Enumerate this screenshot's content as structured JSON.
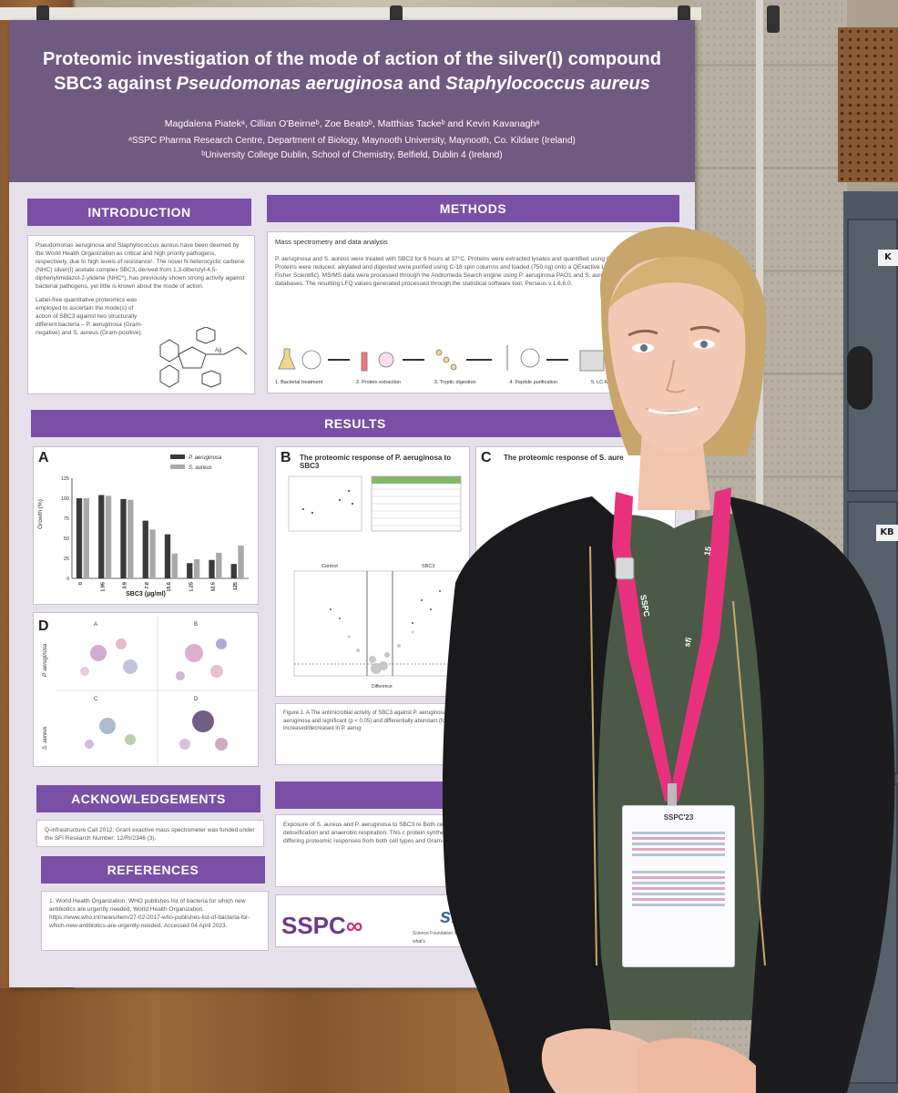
{
  "poster": {
    "title_line1": "Proteomic investigation of the mode of action of the silver(I) compound",
    "title_line2_a": "SBC3 against ",
    "title_line2_b": "Pseudomonas aeruginosa",
    "title_line2_c": " and ",
    "title_line2_d": "Staphylococcus aureus",
    "authors": "Magdalena Piatekᵃ, Cillian O'Beirneᵇ, Zoe Beatoᵇ, Matthias Tackeᵇ and Kevin Kavanaghᵃ",
    "affiliation_a": "ᵃSSPC Pharma Research Centre, Department of Biology, Maynooth University, Maynooth, Co. Kildare (Ireland)",
    "affiliation_b": "ᵇUniversity College Dublin, School of Chemistry, Belfield, Dublin 4 (Ireland)",
    "introduction": {
      "heading": "INTRODUCTION",
      "para1": "Pseudomonas aeruginosa and Staphylococcus aureus have been deemed by the World Health Organization as critical and high priority pathogens, respectively, due to high levels of resistance¹. The novel N-heterocyclic carbene (NHC) silver(I) acetate complex SBC3, derived from 1,3-dibenzyl-4,5-diphenylimidazol-2-ylidene (NHC*), has previously shown strong activity against bacterial pathogens, yet little is known about the mode of action.",
      "para2": "Label-free quantitative proteomics was employed to ascertain the mode(s) of action of SBC3 against two structurally different bacteria – P. aeruginosa (Gram-negative) and S. aureus (Gram-positive)."
    },
    "methods": {
      "heading": "METHODS",
      "subheading": "Mass spectrometry and data analysis",
      "text": "P. aeruginosa and S. aureus were treated with SBC3 for 6 hours at 37°C. Proteins were extracted lysates and quantified using Qubit™ (Invitrogen). Proteins were reduced, alkylated and digested were purified using C-18 spin columns and loaded (750 ng) onto a QExactive LC-MS/MS (Thermo Fisher Scientific). MS/MS data were processed through the Andromeda Search engine using P. aeruginosa PAO1 and S. aureus NCTC 8325 databases. The resulting LFQ values generated processed through the statistical software tool, Perseus v.1.6.6.0.",
      "steps": [
        "1. Bacterial treatment",
        "2. Protein extraction",
        "3. Tryptic digestion",
        "4. Peptide purification",
        "5. LC-MS/MS"
      ]
    },
    "results": {
      "heading": "RESULTS",
      "panel_a_letter": "A",
      "panel_b_letter": "B",
      "panel_c_letter": "C",
      "panel_d_letter": "D",
      "panel_b_title": "The proteomic response of P. aeruginosa to SBC3",
      "panel_c_title": "The proteomic response of S. aure",
      "volcano_control": "Control",
      "volcano_sbc3": "SBC3",
      "volcano_xlabel": "Difference",
      "d_row1": "P. aeruginosa",
      "d_row2": "S. aureus",
      "d_cells": [
        "A",
        "B",
        "C",
        "D"
      ],
      "figure_caption": "Figure 1. A The antimicrobial activity of SBC3 against P. aeruginosa and S. aureus. Distinct differences are shown abundant (characterised) proteins in P. aeruginosa and significant (p < 0.05) and differentially abundant (fold increased/decreased abundance proteins are to the right and associated pathways increased/decreased in P. aerug"
    },
    "discussion": {
      "heading": "DI",
      "text": "Exposure of S. aureus and P. aeruginosa to SBC3 re Both cell types showed alterations in the abundan P. aeruginosa a multitude of pathways were detoxification and anaerobic respiration. This c protein synthesis, lipoylation, glucose metabolis here demonstrate the broad-spectrum activity differing proteomic responses from both cell types and Gram-negative mono or dual-infections."
    },
    "acknowledgements": {
      "heading": "ACKNOWLEDGEMENTS",
      "text": "Q-infrastructure Call 2012; Grant exactive mass spectrometer was funded under the SFI Research Number: 12/RI/2346 (3)."
    },
    "references": {
      "heading": "REFERENCES",
      "text": "1. World Health Organization. WHO publishes list of bacteria for which new antibiotics are urgently needed. World Health Organization. https://www.who.int/news/item/27-02-2017-who-publishes-list-of-bacteria-for-which-new-antibiotics-are-urgently-needed. Accessed 04 April 2023."
    },
    "logos": {
      "sspc": "SSPC",
      "sfi": "sfi",
      "sfi_sub": "Science Foundation Ireland For what's"
    }
  },
  "chart_data": {
    "type": "bar",
    "title": "",
    "xlabel": "SBC3 (µg/ml)",
    "ylabel": "Growth (%)",
    "ylim": [
      0,
      125
    ],
    "yticks": [
      0,
      25,
      50,
      75,
      100,
      125
    ],
    "categories": [
      "0",
      "1.95",
      "3.9",
      "7.8",
      "15.6",
      "31.25",
      "62.5",
      "125"
    ],
    "series": [
      {
        "name": "P. aeruginosa",
        "color": "#3a3a3a",
        "values": [
          100,
          104,
          99,
          72,
          55,
          19,
          23,
          18
        ]
      },
      {
        "name": "S. aureus",
        "color": "#a8a8a8",
        "values": [
          100,
          103,
          98,
          61,
          31,
          24,
          32,
          41
        ]
      }
    ],
    "legend": "top-right",
    "grid": false
  },
  "badge": {
    "header": "SSPC'23"
  },
  "lanyard": {
    "text_a": "SSPC",
    "text_b": "sfi",
    "text_c": "15"
  },
  "locker_labels": [
    "K",
    "KB"
  ],
  "colors": {
    "poster_purple": "#6f5a80",
    "section_purple": "#7a4fa6",
    "lanyard_pink": "#e8317d"
  }
}
